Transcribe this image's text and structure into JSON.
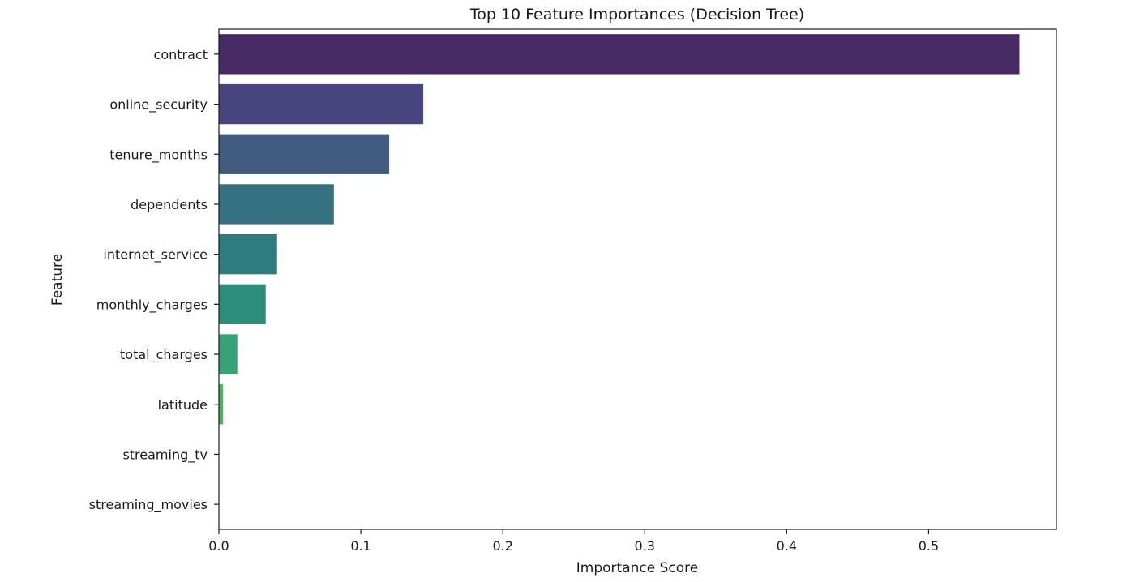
{
  "chart_data": {
    "type": "bar",
    "orientation": "horizontal",
    "title": "Top 10 Feature Importances (Decision Tree)",
    "xlabel": "Importance Score",
    "ylabel": "Feature",
    "xlim": [
      0,
      0.59
    ],
    "xticks": [
      "0.0",
      "0.1",
      "0.2",
      "0.3",
      "0.4",
      "0.5"
    ],
    "grid": false,
    "legend": "none",
    "categories": [
      "contract",
      "online_security",
      "tenure_months",
      "dependents",
      "internet_service",
      "monthly_charges",
      "total_charges",
      "latitude",
      "streaming_tv",
      "streaming_movies"
    ],
    "values": [
      0.564,
      0.144,
      0.12,
      0.081,
      0.041,
      0.033,
      0.013,
      0.003,
      0.0,
      0.0
    ],
    "colors": [
      "#482a64",
      "#47447e",
      "#405a80",
      "#357180",
      "#2e7c80",
      "#2c8d7c",
      "#3aa176",
      "#52b263",
      "#6cc25c",
      "#9fd443"
    ]
  }
}
